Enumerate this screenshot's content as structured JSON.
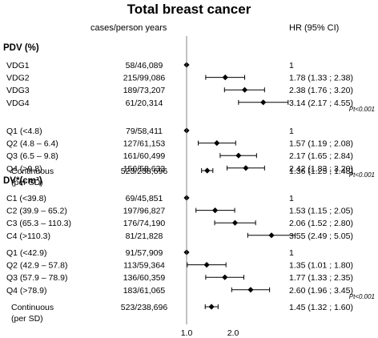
{
  "chart_data": {
    "type": "forest",
    "title": "Total breast cancer",
    "columns": {
      "cases": "cases/person years",
      "hr": "HR (95% CI)"
    },
    "x_axis": {
      "scale": "log",
      "ticks": [
        {
          "value": 1.0,
          "label": "1.0"
        },
        {
          "value": 2.0,
          "label": "2.0"
        }
      ],
      "reference_line": 1.0
    },
    "sections": [
      {
        "heading": "PDV (%)",
        "groups": [
          {
            "rows": [
              {
                "label": "VDG1",
                "cases": "58/46,089",
                "hr_text": "1",
                "hr": 1.0
              },
              {
                "label": "VDG2",
                "cases": "215/99,086",
                "hr_text": "1.78  (1.33 ; 2.38)",
                "hr": 1.78,
                "lo": 1.33,
                "hi": 2.38
              },
              {
                "label": "VDG3",
                "cases": "189/73,207",
                "hr_text": "2.38  (1.76 ; 3.20)",
                "hr": 2.38,
                "lo": 1.76,
                "hi": 3.2
              },
              {
                "label": "VDG4",
                "cases": "61/20,314",
                "hr_text": "3.14  (2.17 ; 4.55)",
                "hr": 3.14,
                "lo": 2.17,
                "hi": 4.55
              }
            ],
            "p_trend": "Pt<0.001"
          },
          {
            "rows": [
              {
                "label": "Q1 (<4.8)",
                "cases": "79/58,411",
                "hr_text": "1",
                "hr": 1.0
              },
              {
                "label": "Q2 (4.8 – 6.4)",
                "cases": "127/61,153",
                "hr_text": "1.57  (1.19 ; 2.08)",
                "hr": 1.57,
                "lo": 1.19,
                "hi": 2.08
              },
              {
                "label": "Q3 (6.5 – 9.8)",
                "cases": "161/60,499",
                "hr_text": "2.17  (1.65 ; 2.84)",
                "hr": 2.17,
                "lo": 1.65,
                "hi": 2.84
              },
              {
                "label": "Q4 (>9.8)",
                "cases": "156/58,633",
                "hr_text": "2.42  (1.83 ; 3.20)",
                "hr": 2.42,
                "lo": 1.83,
                "hi": 3.2
              }
            ],
            "p_trend": "Pt<0.001"
          },
          {
            "rows": [
              {
                "label": "Continuous",
                "label2": "(per SD)",
                "cases": "523/238,696",
                "hr_text": "1.36  (1.25 ; 1.48)",
                "hr": 1.36,
                "lo": 1.25,
                "hi": 1.48
              }
            ]
          }
        ]
      },
      {
        "heading": "DV*(cm³)",
        "groups": [
          {
            "rows": [
              {
                "label": "C1 (<39.8)",
                "cases": "69/45,851",
                "hr_text": "1",
                "hr": 1.0
              },
              {
                "label": "C2 (39.9 – 65.2)",
                "cases": "197/96,827",
                "hr_text": "1.53  (1.15 ; 2.05)",
                "hr": 1.53,
                "lo": 1.15,
                "hi": 2.05
              },
              {
                "label": "C3 (65.3 – 110.3)",
                "cases": "176/74,190",
                "hr_text": "2.06  (1.52 ; 2.80)",
                "hr": 2.06,
                "lo": 1.52,
                "hi": 2.8
              },
              {
                "label": "C4 (>110.3)",
                "cases": "81/21,828",
                "hr_text": "3.55  (2.49 ; 5.05)",
                "hr": 3.55,
                "lo": 2.49,
                "hi": 5.05
              }
            ]
          },
          {
            "rows": [
              {
                "label": "Q1 (<42.9)",
                "cases": "91/57,909",
                "hr_text": "1",
                "hr": 1.0
              },
              {
                "label": "Q2 (42.9 – 57.8)",
                "cases": "113/59,364",
                "hr_text": "1.35  (1.01 ; 1.80)",
                "hr": 1.35,
                "lo": 1.01,
                "hi": 1.8
              },
              {
                "label": "Q3 (57.9 – 78.9)",
                "cases": "136/60,359",
                "hr_text": "1.77  (1.33 ; 2.35)",
                "hr": 1.77,
                "lo": 1.33,
                "hi": 2.35
              },
              {
                "label": "Q4 (>78.9)",
                "cases": "183/61,065",
                "hr_text": "2.60  (1.96 ; 3.45)",
                "hr": 2.6,
                "lo": 1.96,
                "hi": 3.45
              }
            ],
            "p_trend": "Pt<0.001"
          },
          {
            "rows": [
              {
                "label": "Continuous",
                "label2": "(per SD)",
                "cases": "523/238,696",
                "hr_text": "1.45  (1.32 ; 1.60)",
                "hr": 1.45,
                "lo": 1.32,
                "hi": 1.6
              }
            ]
          }
        ]
      }
    ]
  }
}
